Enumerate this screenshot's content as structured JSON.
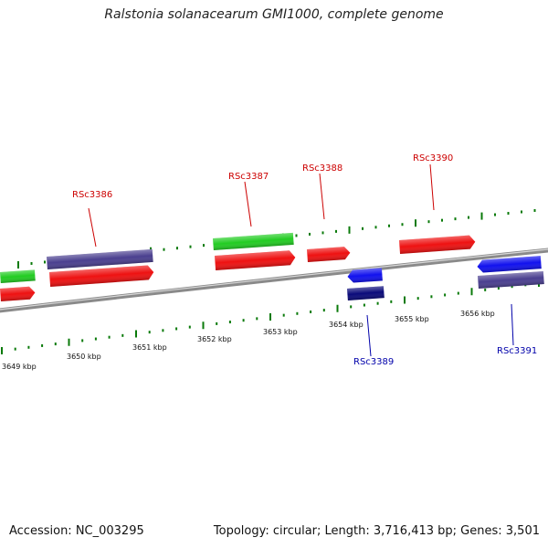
{
  "title": "Ralstonia solanacearum GMI1000, complete genome",
  "footer": {
    "accession": "Accession: NC_003295",
    "summary": "Topology: circular; Length: 3,716,413 bp; Genes: 3,501"
  },
  "colors": {
    "backbone": "#8a8a8a",
    "tick": "#0a7a0a",
    "feature_red": "#ee1111",
    "feature_green": "#22cc22",
    "feature_purple": "#4a3f8f",
    "feature_blue": "#1111ee",
    "feature_navy": "#0a0a7a",
    "label_red": "#cc0000",
    "label_blue": "#0000aa"
  },
  "scale": {
    "labels": [
      "3649 kbp",
      "3650 kbp",
      "3651 kbp",
      "3652 kbp",
      "3653 kbp",
      "3654 kbp",
      "3655 kbp",
      "3656 kbp"
    ]
  },
  "features": [
    {
      "color": "feature_green",
      "arrow": false
    },
    {
      "color": "feature_red",
      "arrow": true
    },
    {
      "color": "feature_purple",
      "arrow": false
    },
    {
      "color": "feature_red",
      "arrow": true
    },
    {
      "color": "feature_green",
      "arrow": false
    },
    {
      "color": "feature_red",
      "arrow": true
    },
    {
      "color": "feature_red",
      "arrow": true
    },
    {
      "color": "feature_red",
      "arrow": true
    },
    {
      "color": "feature_blue",
      "arrow": "left"
    },
    {
      "color": "feature_navy",
      "arrow": false
    },
    {
      "color": "feature_blue",
      "arrow": "left"
    },
    {
      "color": "feature_purple",
      "arrow": false
    }
  ],
  "gene_labels": [
    {
      "text": "RSc3386",
      "color": "label_red"
    },
    {
      "text": "RSc3387",
      "color": "label_red"
    },
    {
      "text": "RSc3388",
      "color": "label_red"
    },
    {
      "text": "RSc3390",
      "color": "label_red"
    },
    {
      "text": "RSc3389",
      "color": "label_blue"
    },
    {
      "text": "RSc3391",
      "color": "label_blue"
    }
  ]
}
